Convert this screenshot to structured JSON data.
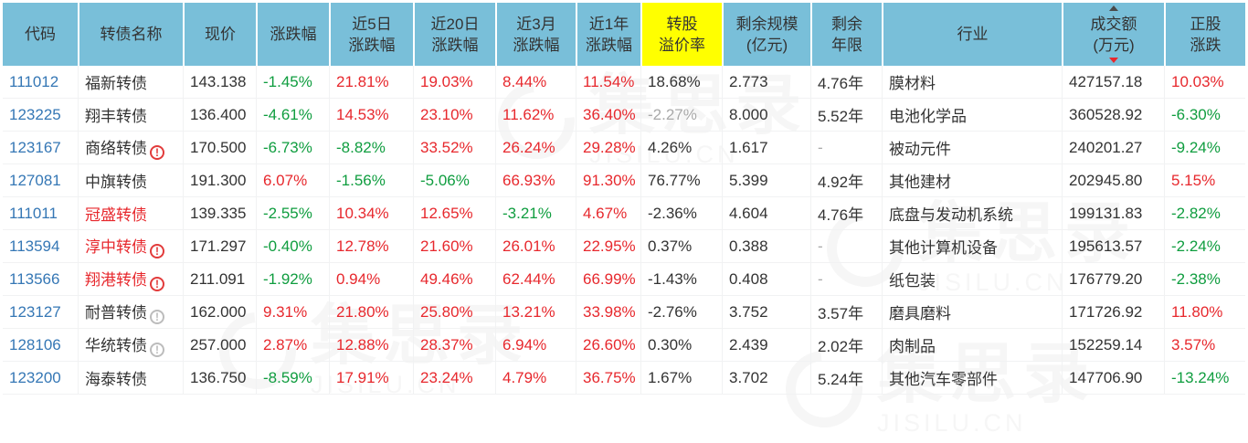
{
  "colors": {
    "header_bg": "#79bfd9",
    "premium_highlight": "#ffff00",
    "up_red": "#e7282d",
    "down_green": "#0f9d3f",
    "code_link_blue": "#3577b5",
    "muted_gray": "#a9a9a9",
    "text": "#333333"
  },
  "watermark": {
    "cn": "集思录",
    "en": "JISILU.CN"
  },
  "table": {
    "columns": [
      {
        "key": "code",
        "lines": [
          "代码"
        ]
      },
      {
        "key": "name",
        "lines": [
          "转债名称"
        ]
      },
      {
        "key": "price",
        "lines": [
          "现价"
        ]
      },
      {
        "key": "chg",
        "lines": [
          "涨跌幅"
        ]
      },
      {
        "key": "chg5d",
        "lines": [
          "近5日",
          "涨跌幅"
        ]
      },
      {
        "key": "chg20d",
        "lines": [
          "近20日",
          "涨跌幅"
        ]
      },
      {
        "key": "chg3m",
        "lines": [
          "近3月",
          "涨跌幅"
        ]
      },
      {
        "key": "chg1y",
        "lines": [
          "近1年",
          "涨跌幅"
        ]
      },
      {
        "key": "premium",
        "lines": [
          "转股",
          "溢价率"
        ],
        "highlight": true
      },
      {
        "key": "size",
        "lines": [
          "剩余规模",
          "(亿元)"
        ]
      },
      {
        "key": "years",
        "lines": [
          "剩余",
          "年限"
        ]
      },
      {
        "key": "industry",
        "lines": [
          "行业"
        ]
      },
      {
        "key": "turnover",
        "lines": [
          "成交额",
          "(万元)"
        ],
        "sort": "desc"
      },
      {
        "key": "stockchg",
        "lines": [
          "正股",
          "涨跌"
        ]
      }
    ],
    "rows": [
      {
        "code": "111012",
        "name": "福新转债",
        "name_color": "bk",
        "icon": null,
        "price": "143.138",
        "chg": {
          "t": "-1.45%",
          "c": "dn"
        },
        "chg5d": {
          "t": "21.81%",
          "c": "up"
        },
        "chg20d": {
          "t": "19.03%",
          "c": "up"
        },
        "chg3m": {
          "t": "8.44%",
          "c": "up"
        },
        "chg1y": {
          "t": "11.54%",
          "c": "up"
        },
        "premium": {
          "t": "18.68%",
          "c": "bk"
        },
        "size": "2.773",
        "years": {
          "t": "4.76年",
          "c": "bk"
        },
        "industry": "膜材料",
        "turnover": "427157.18",
        "stockchg": {
          "t": "10.03%",
          "c": "up"
        }
      },
      {
        "code": "123225",
        "name": "翔丰转债",
        "name_color": "bk",
        "icon": null,
        "price": "136.400",
        "chg": {
          "t": "-4.61%",
          "c": "dn"
        },
        "chg5d": {
          "t": "14.53%",
          "c": "up"
        },
        "chg20d": {
          "t": "23.10%",
          "c": "up"
        },
        "chg3m": {
          "t": "11.62%",
          "c": "up"
        },
        "chg1y": {
          "t": "36.40%",
          "c": "up"
        },
        "premium": {
          "t": "-2.27%",
          "c": "gy"
        },
        "size": "8.000",
        "years": {
          "t": "5.52年",
          "c": "bk"
        },
        "industry": "电池化学品",
        "turnover": "360528.92",
        "stockchg": {
          "t": "-6.30%",
          "c": "dn"
        }
      },
      {
        "code": "123167",
        "name": "商络转债",
        "name_color": "bk",
        "icon": "red",
        "price": "170.500",
        "chg": {
          "t": "-6.73%",
          "c": "dn"
        },
        "chg5d": {
          "t": "-8.82%",
          "c": "dn"
        },
        "chg20d": {
          "t": "33.52%",
          "c": "up"
        },
        "chg3m": {
          "t": "26.24%",
          "c": "up"
        },
        "chg1y": {
          "t": "29.28%",
          "c": "up"
        },
        "premium": {
          "t": "4.26%",
          "c": "bk"
        },
        "size": "1.617",
        "years": {
          "t": "-",
          "c": "gy"
        },
        "industry": "被动元件",
        "turnover": "240201.27",
        "stockchg": {
          "t": "-9.24%",
          "c": "dn"
        }
      },
      {
        "code": "127081",
        "name": "中旗转债",
        "name_color": "bk",
        "icon": null,
        "price": "191.300",
        "chg": {
          "t": "6.07%",
          "c": "up"
        },
        "chg5d": {
          "t": "-1.56%",
          "c": "dn"
        },
        "chg20d": {
          "t": "-5.06%",
          "c": "dn"
        },
        "chg3m": {
          "t": "66.93%",
          "c": "up"
        },
        "chg1y": {
          "t": "91.30%",
          "c": "up"
        },
        "premium": {
          "t": "76.77%",
          "c": "bk"
        },
        "size": "5.399",
        "years": {
          "t": "4.92年",
          "c": "bk"
        },
        "industry": "其他建材",
        "turnover": "202945.80",
        "stockchg": {
          "t": "5.15%",
          "c": "up"
        }
      },
      {
        "code": "111011",
        "name": "冠盛转债",
        "name_color": "rd",
        "icon": null,
        "price": "139.335",
        "chg": {
          "t": "-2.55%",
          "c": "dn"
        },
        "chg5d": {
          "t": "10.34%",
          "c": "up"
        },
        "chg20d": {
          "t": "12.65%",
          "c": "up"
        },
        "chg3m": {
          "t": "-3.21%",
          "c": "dn"
        },
        "chg1y": {
          "t": "4.67%",
          "c": "up"
        },
        "premium": {
          "t": "-2.36%",
          "c": "bk"
        },
        "size": "4.604",
        "years": {
          "t": "4.76年",
          "c": "bk"
        },
        "industry": "底盘与发动机系统",
        "turnover": "199131.83",
        "stockchg": {
          "t": "-2.82%",
          "c": "dn"
        }
      },
      {
        "code": "113594",
        "name": "淳中转债",
        "name_color": "rd",
        "icon": "red",
        "price": "171.297",
        "chg": {
          "t": "-0.40%",
          "c": "dn"
        },
        "chg5d": {
          "t": "12.78%",
          "c": "up"
        },
        "chg20d": {
          "t": "21.60%",
          "c": "up"
        },
        "chg3m": {
          "t": "26.01%",
          "c": "up"
        },
        "chg1y": {
          "t": "22.95%",
          "c": "up"
        },
        "premium": {
          "t": "0.37%",
          "c": "bk"
        },
        "size": "0.388",
        "years": {
          "t": "-",
          "c": "gy"
        },
        "industry": "其他计算机设备",
        "turnover": "195613.57",
        "stockchg": {
          "t": "-2.24%",
          "c": "dn"
        }
      },
      {
        "code": "113566",
        "name": "翔港转债",
        "name_color": "rd",
        "icon": "red",
        "price": "211.091",
        "chg": {
          "t": "-1.92%",
          "c": "dn"
        },
        "chg5d": {
          "t": "0.94%",
          "c": "up"
        },
        "chg20d": {
          "t": "49.46%",
          "c": "up"
        },
        "chg3m": {
          "t": "62.44%",
          "c": "up"
        },
        "chg1y": {
          "t": "66.99%",
          "c": "up"
        },
        "premium": {
          "t": "-1.43%",
          "c": "bk"
        },
        "size": "0.408",
        "years": {
          "t": "-",
          "c": "gy"
        },
        "industry": "纸包装",
        "turnover": "176779.20",
        "stockchg": {
          "t": "-2.38%",
          "c": "dn"
        }
      },
      {
        "code": "123127",
        "name": "耐普转债",
        "name_color": "bk",
        "icon": "gray",
        "price": "162.000",
        "chg": {
          "t": "9.31%",
          "c": "up"
        },
        "chg5d": {
          "t": "21.80%",
          "c": "up"
        },
        "chg20d": {
          "t": "25.80%",
          "c": "up"
        },
        "chg3m": {
          "t": "13.21%",
          "c": "up"
        },
        "chg1y": {
          "t": "33.98%",
          "c": "up"
        },
        "premium": {
          "t": "-2.76%",
          "c": "bk"
        },
        "size": "3.752",
        "years": {
          "t": "3.57年",
          "c": "bk"
        },
        "industry": "磨具磨料",
        "turnover": "171726.92",
        "stockchg": {
          "t": "11.80%",
          "c": "up"
        }
      },
      {
        "code": "128106",
        "name": "华统转债",
        "name_color": "bk",
        "icon": "gray",
        "price": "257.000",
        "chg": {
          "t": "2.87%",
          "c": "up"
        },
        "chg5d": {
          "t": "12.88%",
          "c": "up"
        },
        "chg20d": {
          "t": "28.37%",
          "c": "up"
        },
        "chg3m": {
          "t": "6.94%",
          "c": "up"
        },
        "chg1y": {
          "t": "26.60%",
          "c": "up"
        },
        "premium": {
          "t": "0.30%",
          "c": "bk"
        },
        "size": "2.439",
        "years": {
          "t": "2.02年",
          "c": "bk"
        },
        "industry": "肉制品",
        "turnover": "152259.14",
        "stockchg": {
          "t": "3.57%",
          "c": "up"
        }
      },
      {
        "code": "123200",
        "name": "海泰转债",
        "name_color": "bk",
        "icon": null,
        "price": "136.750",
        "chg": {
          "t": "-8.59%",
          "c": "dn"
        },
        "chg5d": {
          "t": "17.91%",
          "c": "up"
        },
        "chg20d": {
          "t": "23.24%",
          "c": "up"
        },
        "chg3m": {
          "t": "4.79%",
          "c": "up"
        },
        "chg1y": {
          "t": "36.75%",
          "c": "up"
        },
        "premium": {
          "t": "1.67%",
          "c": "bk"
        },
        "size": "3.702",
        "years": {
          "t": "5.24年",
          "c": "bk"
        },
        "industry": "其他汽车零部件",
        "turnover": "147706.90",
        "stockchg": {
          "t": "-13.24%",
          "c": "dn"
        }
      }
    ]
  }
}
